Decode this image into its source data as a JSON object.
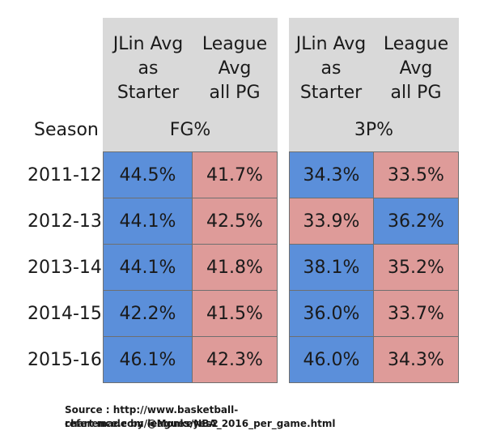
{
  "colors": {
    "higher": "#5b8fda",
    "lower": "#de9b99",
    "header_bg": "#d9d9d9"
  },
  "chart_data": {
    "type": "table",
    "row_header": "Season",
    "seasons": [
      "2011-12",
      "2012-13",
      "2013-14",
      "2014-15",
      "2015-16"
    ],
    "groups": [
      {
        "metric": "FG%",
        "columns": [
          "JLin Avg\nas\nStarter",
          "League\nAvg\nall PG"
        ],
        "values": [
          [
            "44.5%",
            "41.7%"
          ],
          [
            "44.1%",
            "42.5%"
          ],
          [
            "44.1%",
            "41.8%"
          ],
          [
            "42.2%",
            "41.5%"
          ],
          [
            "46.1%",
            "42.3%"
          ]
        ]
      },
      {
        "metric": "3P%",
        "columns": [
          "JLin Avg\nas\nStarter",
          "League\nAvg\nall PG"
        ],
        "values": [
          [
            "34.3%",
            "33.5%"
          ],
          [
            "33.9%",
            "36.2%"
          ],
          [
            "38.1%",
            "35.2%"
          ],
          [
            "36.0%",
            "33.7%"
          ],
          [
            "46.0%",
            "34.3%"
          ]
        ]
      }
    ]
  },
  "footer": {
    "source": "Source : http://www.basketball-reference.com/leagues/NBA_2016_per_game.html",
    "credit": "chart made by @Monkeyes2"
  }
}
